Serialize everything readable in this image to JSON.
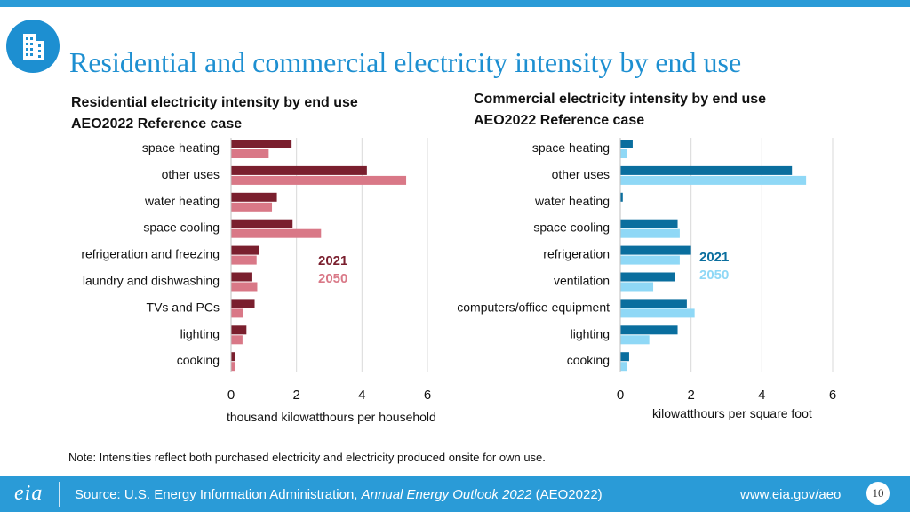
{
  "title": "Residential and commercial electricity intensity by end use",
  "note": "Note: Intensities reflect both purchased electricity and electricity produced onsite for own use.",
  "footer": {
    "source_prefix": "Source: U.S. Energy Information Administration, ",
    "source_title": "Annual Energy Outlook 2022",
    "source_suffix": " (AEO2022)",
    "url": "www.eia.gov/aeo",
    "page": "10",
    "logo": "eia"
  },
  "colors": {
    "brand": "#1d8fd1",
    "res2021": "#7a1f2e",
    "res2050": "#d97887",
    "com2021": "#0a6e9e",
    "com2050": "#8fd8f6"
  },
  "chart_data": [
    {
      "type": "bar",
      "orientation": "horizontal",
      "title": "Residential electricity intensity by end use",
      "subtitle": "AEO2022 Reference case",
      "categories": [
        "space heating",
        "other uses",
        "water heating",
        "space cooling",
        "refrigeration and freezing",
        "laundry and dishwashing",
        "TVs and PCs",
        "lighting",
        "cooking"
      ],
      "series": [
        {
          "name": "2021",
          "values": [
            1.85,
            4.15,
            1.4,
            1.88,
            0.85,
            0.65,
            0.72,
            0.47,
            0.12
          ]
        },
        {
          "name": "2050",
          "values": [
            1.15,
            5.35,
            1.25,
            2.75,
            0.78,
            0.8,
            0.38,
            0.35,
            0.12
          ]
        }
      ],
      "xlabel": "thousand kilowatthours per household",
      "xlim": [
        0,
        6
      ],
      "xticks": [
        "0",
        "2",
        "4",
        "6"
      ],
      "legend": [
        "2021",
        "2050"
      ]
    },
    {
      "type": "bar",
      "orientation": "horizontal",
      "title": "Commercial electricity intensity by end use",
      "subtitle": "AEO2022 Reference case",
      "categories": [
        "space heating",
        "other uses",
        "water heating",
        "space cooling",
        "refrigeration",
        "ventilation",
        "computers/office equipment",
        "lighting",
        "cooking"
      ],
      "series": [
        {
          "name": "2021",
          "values": [
            0.35,
            4.85,
            0.07,
            1.62,
            2.0,
            1.55,
            1.88,
            1.62,
            0.25
          ]
        },
        {
          "name": "2050",
          "values": [
            0.2,
            5.25,
            0.0,
            1.68,
            1.68,
            0.93,
            2.1,
            0.82,
            0.2
          ]
        }
      ],
      "xlabel": "kilowatthours per square foot",
      "xlim": [
        0,
        6
      ],
      "xticks": [
        "0",
        "2",
        "4",
        "6"
      ],
      "legend": [
        "2021",
        "2050"
      ]
    }
  ]
}
